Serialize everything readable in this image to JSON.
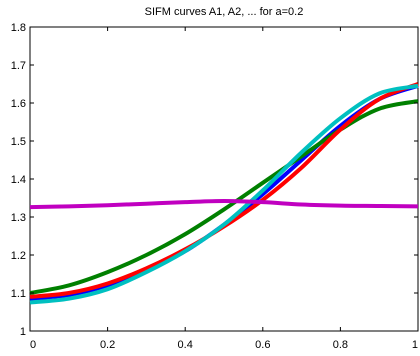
{
  "chart_data": {
    "type": "line",
    "title": "SIFM curves A1, A2, ... for a=0.2",
    "xlabel": "",
    "ylabel": "",
    "xlim": [
      0,
      1
    ],
    "ylim": [
      1,
      1.8
    ],
    "grid": false,
    "x_ticks": [
      "0",
      "0.2",
      "0.4",
      "0.6",
      "0.8",
      "1"
    ],
    "y_ticks": [
      "1",
      "1.1",
      "1.2",
      "1.3",
      "1.4",
      "1.5",
      "1.6",
      "1.7",
      "1.8"
    ],
    "x": [
      0,
      0.1,
      0.2,
      0.3,
      0.4,
      0.5,
      0.6,
      0.7,
      0.8,
      0.9,
      1.0
    ],
    "series": [
      {
        "color": "#0000ff",
        "values": [
          1.085,
          1.095,
          1.12,
          1.16,
          1.21,
          1.28,
          1.36,
          1.45,
          1.54,
          1.61,
          1.645
        ]
      },
      {
        "color": "#008000",
        "values": [
          1.1,
          1.12,
          1.155,
          1.2,
          1.255,
          1.32,
          1.39,
          1.46,
          1.53,
          1.585,
          1.605
        ]
      },
      {
        "color": "#ff0000",
        "values": [
          1.09,
          1.1,
          1.125,
          1.165,
          1.215,
          1.275,
          1.345,
          1.43,
          1.53,
          1.61,
          1.65
        ]
      },
      {
        "color": "#00c0c0",
        "values": [
          1.075,
          1.085,
          1.11,
          1.155,
          1.21,
          1.28,
          1.37,
          1.47,
          1.56,
          1.625,
          1.645
        ]
      },
      {
        "color": "#c000c0",
        "values": [
          1.326,
          1.328,
          1.331,
          1.335,
          1.339,
          1.342,
          1.339,
          1.333,
          1.33,
          1.329,
          1.328
        ]
      }
    ]
  }
}
